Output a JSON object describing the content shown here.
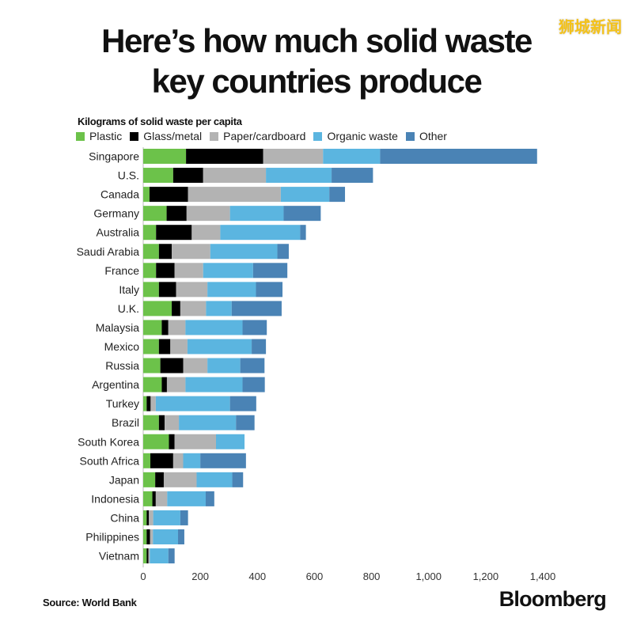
{
  "watermark": "狮城新闻",
  "chart_data": {
    "type": "bar",
    "orientation": "horizontal",
    "stacked": true,
    "title_lines": [
      "Here’s how much solid waste",
      "key countries produce"
    ],
    "subtitle": "Kilograms of solid waste per capita",
    "legend_placement": "top-left",
    "grid": false,
    "xlim": [
      0,
      1400
    ],
    "x_ticks": [
      0,
      200,
      400,
      600,
      800,
      1000,
      1200,
      1400
    ],
    "x_tick_labels": [
      "0",
      "200",
      "400",
      "600",
      "800",
      "1,000",
      "1,200",
      "1,400"
    ],
    "categories": [
      "Singapore",
      "U.S.",
      "Canada",
      "Germany",
      "Australia",
      "Saudi Arabia",
      "France",
      "Italy",
      "U.K.",
      "Malaysia",
      "Mexico",
      "Russia",
      "Argentina",
      "Turkey",
      "Brazil",
      "South Korea",
      "South Africa",
      "Japan",
      "Indonesia",
      "China",
      "Philippines",
      "Vietnam"
    ],
    "series": [
      {
        "name": "Plastic",
        "color": "#6cc24a",
        "values": [
          150,
          105,
          22,
          82,
          45,
          55,
          45,
          55,
          100,
          65,
          55,
          60,
          65,
          12,
          55,
          90,
          25,
          42,
          32,
          12,
          12,
          12
        ]
      },
      {
        "name": "Glass/metal",
        "color": "#000000",
        "values": [
          270,
          105,
          135,
          70,
          125,
          45,
          65,
          60,
          30,
          23,
          40,
          80,
          18,
          14,
          20,
          20,
          80,
          30,
          12,
          8,
          12,
          6
        ]
      },
      {
        "name": "Paper/cardboard",
        "color": "#b3b3b3",
        "values": [
          210,
          220,
          325,
          152,
          100,
          135,
          100,
          110,
          90,
          60,
          60,
          85,
          65,
          18,
          50,
          145,
          35,
          115,
          40,
          15,
          10,
          5
        ]
      },
      {
        "name": "Organic waste",
        "color": "#5bb5e0",
        "values": [
          200,
          230,
          170,
          188,
          280,
          235,
          175,
          170,
          90,
          200,
          225,
          115,
          200,
          260,
          200,
          100,
          60,
          125,
          135,
          95,
          88,
          65
        ]
      },
      {
        "name": "Other",
        "color": "#4a83b5",
        "values": [
          550,
          145,
          55,
          130,
          20,
          40,
          120,
          93,
          175,
          85,
          50,
          85,
          78,
          92,
          65,
          0,
          160,
          38,
          30,
          27,
          22,
          22
        ]
      }
    ]
  },
  "footer": {
    "source": "Source: World Bank",
    "brand": "Bloomberg"
  }
}
